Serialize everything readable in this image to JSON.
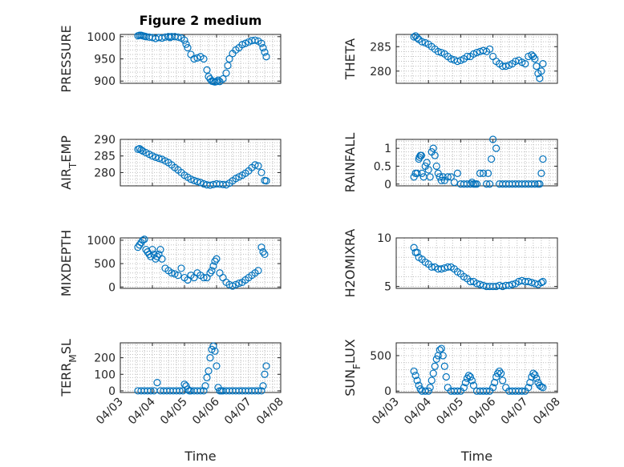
{
  "title": "Figure 2 medium",
  "chart_data": [
    {
      "type": "scatter",
      "ylabel": "PRESSURE",
      "ylim": [
        895,
        1005
      ],
      "yticks": [
        900,
        950,
        1000
      ],
      "xticklabels_shown": false,
      "color": "#0072bd",
      "x": [
        0.55,
        0.6,
        0.65,
        0.7,
        0.75,
        0.8,
        0.9,
        1.0,
        1.1,
        1.2,
        1.3,
        1.4,
        1.5,
        1.55,
        1.6,
        1.7,
        1.8,
        1.9,
        2.0,
        2.05,
        2.1,
        2.2,
        2.3,
        2.4,
        2.5,
        2.6,
        2.7,
        2.75,
        2.8,
        2.85,
        2.9,
        2.95,
        3.0,
        3.05,
        3.1,
        3.2,
        3.3,
        3.35,
        3.4,
        3.5,
        3.6,
        3.7,
        3.8,
        3.9,
        4.0,
        4.1,
        4.2,
        4.3,
        4.4,
        4.45,
        4.5,
        4.55
      ],
      "y": [
        1002,
        1003,
        1003,
        1002,
        1001,
        1000,
        999,
        998,
        996,
        998,
        997,
        999,
        1000,
        998,
        1000,
        1000,
        999,
        997,
        992,
        983,
        975,
        960,
        950,
        952,
        955,
        950,
        925,
        910,
        905,
        900,
        899,
        898,
        899,
        902,
        899,
        905,
        918,
        935,
        950,
        962,
        970,
        975,
        982,
        985,
        988,
        991,
        992,
        990,
        985,
        975,
        965,
        955
      ]
    },
    {
      "type": "scatter",
      "ylabel": "THETA",
      "ylim": [
        277.5,
        287.5
      ],
      "yticks": [
        280,
        285
      ],
      "xticklabels_shown": false,
      "color": "#0072bd",
      "x": [
        0.55,
        0.6,
        0.65,
        0.7,
        0.8,
        0.9,
        1.0,
        1.1,
        1.2,
        1.3,
        1.4,
        1.5,
        1.6,
        1.7,
        1.8,
        1.9,
        2.0,
        2.1,
        2.2,
        2.3,
        2.4,
        2.5,
        2.6,
        2.7,
        2.8,
        2.9,
        3.0,
        3.1,
        3.2,
        3.3,
        3.4,
        3.5,
        3.6,
        3.7,
        3.8,
        3.9,
        4.0,
        4.1,
        4.2,
        4.25,
        4.3,
        4.35,
        4.4,
        4.45,
        4.5,
        4.55
      ],
      "y": [
        287,
        287.2,
        286.8,
        286.5,
        286,
        285.8,
        285.5,
        285,
        284.5,
        284,
        283.8,
        283.5,
        283,
        282.5,
        282.3,
        282,
        282.2,
        282.5,
        283,
        283,
        283.5,
        283.8,
        284,
        284.2,
        284,
        284.5,
        283,
        282,
        281.5,
        281,
        281,
        281.2,
        281.5,
        282,
        282.2,
        281.8,
        281.5,
        283,
        283.3,
        283,
        282.5,
        281,
        279.5,
        278.5,
        280,
        281.5
      ]
    },
    {
      "type": "scatter",
      "ylabel": "AIR_TEMP",
      "ylim": [
        276,
        290
      ],
      "yticks": [
        280,
        285,
        290
      ],
      "xticklabels_shown": false,
      "color": "#0072bd",
      "x": [
        0.55,
        0.6,
        0.65,
        0.7,
        0.8,
        0.9,
        1.0,
        1.1,
        1.2,
        1.3,
        1.4,
        1.5,
        1.6,
        1.7,
        1.8,
        1.9,
        2.0,
        2.1,
        2.2,
        2.3,
        2.4,
        2.5,
        2.6,
        2.7,
        2.8,
        2.9,
        3.0,
        3.1,
        3.2,
        3.3,
        3.4,
        3.5,
        3.6,
        3.7,
        3.8,
        3.9,
        4.0,
        4.1,
        4.2,
        4.3,
        4.4,
        4.5,
        4.55
      ],
      "y": [
        287,
        287.2,
        286.8,
        286.5,
        286,
        285.5,
        285,
        284.6,
        284.3,
        284,
        283.5,
        283,
        282.3,
        281.5,
        280.8,
        280,
        279.2,
        278.6,
        278,
        277.6,
        277.3,
        277,
        276.6,
        276.3,
        276.2,
        276.4,
        276.6,
        276.5,
        276.4,
        276.3,
        276.8,
        277.5,
        278.2,
        278.7,
        279.2,
        279.8,
        280.5,
        281.5,
        282.3,
        282,
        280,
        277.6,
        277.5
      ]
    },
    {
      "type": "scatter",
      "ylabel": "RAINFALL",
      "ylim": [
        -0.05,
        1.25
      ],
      "yticks": [
        0,
        0.5,
        1
      ],
      "xticklabels_shown": false,
      "color": "#0072bd",
      "x": [
        0.55,
        0.6,
        0.65,
        0.7,
        0.72,
        0.75,
        0.78,
        0.8,
        0.85,
        0.9,
        0.95,
        1.0,
        1.05,
        1.1,
        1.15,
        1.2,
        1.25,
        1.3,
        1.35,
        1.4,
        1.45,
        1.5,
        1.6,
        1.7,
        1.8,
        1.9,
        2.0,
        2.1,
        2.2,
        2.3,
        2.35,
        2.4,
        2.45,
        2.5,
        2.6,
        2.7,
        2.8,
        2.85,
        2.9,
        2.95,
        3.0,
        3.1,
        3.2,
        3.3,
        3.4,
        3.5,
        3.6,
        3.7,
        3.8,
        3.9,
        4.0,
        4.1,
        4.2,
        4.3,
        4.4,
        4.45,
        4.5,
        4.55
      ],
      "y": [
        0.2,
        0.3,
        0.3,
        0.7,
        0.75,
        0.8,
        0.8,
        0.3,
        0.2,
        0.5,
        0.6,
        0.4,
        0.2,
        0.9,
        1.0,
        0.8,
        0.5,
        0.3,
        0.2,
        0.1,
        0.2,
        0.1,
        0.2,
        0.2,
        0.05,
        0.3,
        0,
        0,
        0,
        0,
        0.05,
        0,
        0,
        0,
        0.3,
        0.3,
        0,
        0.3,
        0,
        0.7,
        1.25,
        1.0,
        0,
        0,
        0,
        0,
        0,
        0,
        0,
        0,
        0,
        0,
        0,
        0,
        0,
        0,
        0.3,
        0.7
      ]
    },
    {
      "type": "scatter",
      "ylabel": "MIXDEPTH",
      "ylim": [
        -30,
        1050
      ],
      "yticks": [
        0,
        500,
        1000
      ],
      "xticklabels_shown": false,
      "color": "#0072bd",
      "x": [
        0.55,
        0.6,
        0.65,
        0.7,
        0.75,
        0.8,
        0.85,
        0.9,
        0.95,
        1.0,
        1.05,
        1.1,
        1.15,
        1.2,
        1.25,
        1.3,
        1.4,
        1.5,
        1.6,
        1.7,
        1.8,
        1.9,
        2.0,
        2.1,
        2.2,
        2.3,
        2.4,
        2.5,
        2.6,
        2.7,
        2.8,
        2.85,
        2.9,
        2.95,
        3.0,
        3.1,
        3.2,
        3.3,
        3.4,
        3.5,
        3.6,
        3.7,
        3.8,
        3.9,
        4.0,
        4.1,
        4.2,
        4.3,
        4.4,
        4.45,
        4.5
      ],
      "y": [
        850,
        900,
        950,
        1000,
        1020,
        800,
        750,
        700,
        650,
        800,
        700,
        600,
        650,
        700,
        800,
        600,
        400,
        350,
        300,
        280,
        250,
        400,
        200,
        150,
        250,
        200,
        300,
        250,
        200,
        200,
        300,
        350,
        450,
        550,
        600,
        300,
        200,
        100,
        50,
        20,
        50,
        80,
        100,
        150,
        200,
        250,
        300,
        350,
        850,
        750,
        700
      ]
    },
    {
      "type": "scatter",
      "ylabel": "H2OMIXRA",
      "ylim": [
        4.8,
        10
      ],
      "yticks": [
        5,
        10
      ],
      "xticklabels_shown": false,
      "color": "#0072bd",
      "x": [
        0.55,
        0.6,
        0.65,
        0.7,
        0.8,
        0.9,
        1.0,
        1.1,
        1.2,
        1.3,
        1.4,
        1.5,
        1.6,
        1.7,
        1.8,
        1.9,
        2.0,
        2.1,
        2.2,
        2.3,
        2.4,
        2.5,
        2.6,
        2.7,
        2.8,
        2.9,
        3.0,
        3.1,
        3.2,
        3.3,
        3.4,
        3.5,
        3.6,
        3.7,
        3.8,
        3.9,
        4.0,
        4.1,
        4.2,
        4.3,
        4.4,
        4.5,
        4.55
      ],
      "y": [
        9,
        8.5,
        8.5,
        8,
        7.8,
        7.5,
        7.3,
        7,
        7,
        6.8,
        6.8,
        6.9,
        7,
        7,
        6.8,
        6.5,
        6.3,
        6,
        5.8,
        5.5,
        5.5,
        5.3,
        5.2,
        5.1,
        5,
        5,
        5,
        5,
        5.1,
        5,
        5.1,
        5.1,
        5.2,
        5.3,
        5.5,
        5.6,
        5.5,
        5.5,
        5.4,
        5.3,
        5.2,
        5.4,
        5.5
      ]
    },
    {
      "type": "scatter",
      "ylabel": "TERR_MSL",
      "ylim": [
        -10,
        290
      ],
      "yticks": [
        0,
        100,
        200
      ],
      "xticklabels_shown": true,
      "xlabel": "Time",
      "color": "#0072bd",
      "x": [
        0.55,
        0.65,
        0.75,
        0.85,
        0.95,
        1.05,
        1.15,
        1.25,
        1.35,
        1.45,
        1.55,
        1.65,
        1.75,
        1.85,
        1.95,
        2.0,
        2.05,
        2.1,
        2.15,
        2.2,
        2.3,
        2.4,
        2.5,
        2.6,
        2.65,
        2.7,
        2.75,
        2.8,
        2.85,
        2.9,
        2.95,
        3.0,
        3.05,
        3.1,
        3.15,
        3.2,
        3.3,
        3.4,
        3.5,
        3.6,
        3.7,
        3.8,
        3.9,
        4.0,
        4.1,
        4.2,
        4.3,
        4.4,
        4.45,
        4.5,
        4.55
      ],
      "y": [
        0,
        0,
        0,
        0,
        0,
        0,
        50,
        0,
        0,
        0,
        0,
        0,
        0,
        0,
        0,
        40,
        30,
        10,
        0,
        0,
        0,
        0,
        0,
        0,
        30,
        80,
        120,
        200,
        250,
        270,
        240,
        150,
        20,
        0,
        0,
        0,
        0,
        0,
        0,
        0,
        0,
        0,
        0,
        0,
        0,
        0,
        0,
        0,
        30,
        100,
        150
      ]
    },
    {
      "type": "scatter",
      "ylabel": "SUN_FLUX",
      "ylim": [
        -20,
        680
      ],
      "yticks": [
        0,
        500
      ],
      "xticklabels_shown": true,
      "xlabel": "Time",
      "color": "#0072bd",
      "x": [
        0.55,
        0.6,
        0.65,
        0.7,
        0.75,
        0.8,
        0.9,
        1.0,
        1.05,
        1.1,
        1.15,
        1.2,
        1.25,
        1.3,
        1.35,
        1.4,
        1.45,
        1.5,
        1.55,
        1.6,
        1.7,
        1.8,
        1.9,
        2.0,
        2.1,
        2.15,
        2.2,
        2.25,
        2.3,
        2.35,
        2.4,
        2.5,
        2.6,
        2.7,
        2.8,
        2.9,
        3.0,
        3.05,
        3.1,
        3.15,
        3.2,
        3.25,
        3.3,
        3.4,
        3.5,
        3.6,
        3.7,
        3.8,
        3.9,
        4.0,
        4.1,
        4.15,
        4.2,
        4.25,
        4.3,
        4.35,
        4.4,
        4.45,
        4.5,
        4.55
      ],
      "y": [
        280,
        220,
        150,
        80,
        30,
        0,
        0,
        0,
        50,
        150,
        250,
        350,
        450,
        500,
        580,
        600,
        500,
        350,
        200,
        50,
        0,
        0,
        0,
        0,
        50,
        120,
        180,
        220,
        200,
        150,
        80,
        0,
        0,
        0,
        0,
        0,
        50,
        120,
        200,
        250,
        280,
        250,
        150,
        50,
        0,
        0,
        0,
        0,
        0,
        0,
        50,
        120,
        200,
        250,
        230,
        180,
        120,
        80,
        60,
        50
      ]
    }
  ],
  "x_axis": {
    "ticklabels": [
      "04/03",
      "04/04",
      "04/05",
      "04/06",
      "04/07",
      "04/08"
    ]
  }
}
